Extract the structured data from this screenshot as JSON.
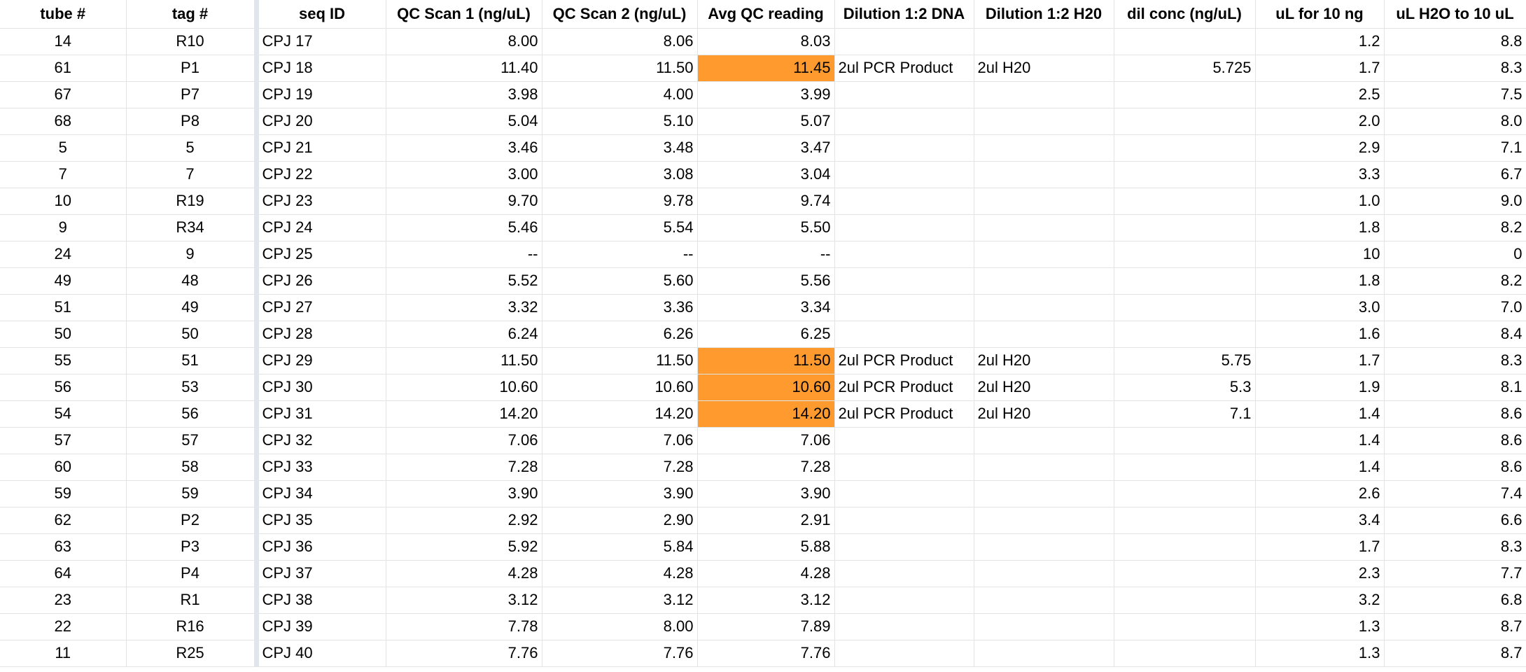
{
  "colors": {
    "highlight": "#ff9a2e",
    "gridline": "#e2e3e3",
    "freeze_divider": "#e1e5ee"
  },
  "headers": [
    "tube #",
    "tag #",
    "seq ID",
    "QC Scan 1 (ng/uL)",
    "QC Scan 2 (ng/uL)",
    "Avg QC reading",
    "Dilution 1:2 DNA",
    "Dilution 1:2 H20",
    "dil conc (ng/uL)",
    "uL for 10 ng",
    "uL H2O to 10 uL"
  ],
  "rows": [
    {
      "tube": "14",
      "tag": "R10",
      "seq": "CPJ 17",
      "qc1": "8.00",
      "qc2": "8.06",
      "avg": "8.03",
      "avg_highlight": false,
      "dna": "",
      "h2o": "",
      "dil": "",
      "ul10": "1.2",
      "ulh2o": "8.8"
    },
    {
      "tube": "61",
      "tag": "P1",
      "seq": "CPJ 18",
      "qc1": "11.40",
      "qc2": "11.50",
      "avg": "11.45",
      "avg_highlight": true,
      "dna": "2ul PCR Product",
      "h2o": "2ul H20",
      "dil": "5.725",
      "ul10": "1.7",
      "ulh2o": "8.3"
    },
    {
      "tube": "67",
      "tag": "P7",
      "seq": "CPJ 19",
      "qc1": "3.98",
      "qc2": "4.00",
      "avg": "3.99",
      "avg_highlight": false,
      "dna": "",
      "h2o": "",
      "dil": "",
      "ul10": "2.5",
      "ulh2o": "7.5"
    },
    {
      "tube": "68",
      "tag": "P8",
      "seq": "CPJ 20",
      "qc1": "5.04",
      "qc2": "5.10",
      "avg": "5.07",
      "avg_highlight": false,
      "dna": "",
      "h2o": "",
      "dil": "",
      "ul10": "2.0",
      "ulh2o": "8.0"
    },
    {
      "tube": "5",
      "tag": "5",
      "seq": "CPJ 21",
      "qc1": "3.46",
      "qc2": "3.48",
      "avg": "3.47",
      "avg_highlight": false,
      "dna": "",
      "h2o": "",
      "dil": "",
      "ul10": "2.9",
      "ulh2o": "7.1"
    },
    {
      "tube": "7",
      "tag": "7",
      "seq": "CPJ 22",
      "qc1": "3.00",
      "qc2": "3.08",
      "avg": "3.04",
      "avg_highlight": false,
      "dna": "",
      "h2o": "",
      "dil": "",
      "ul10": "3.3",
      "ulh2o": "6.7"
    },
    {
      "tube": "10",
      "tag": "R19",
      "seq": "CPJ 23",
      "qc1": "9.70",
      "qc2": "9.78",
      "avg": "9.74",
      "avg_highlight": false,
      "dna": "",
      "h2o": "",
      "dil": "",
      "ul10": "1.0",
      "ulh2o": "9.0"
    },
    {
      "tube": "9",
      "tag": "R34",
      "seq": "CPJ 24",
      "qc1": "5.46",
      "qc2": "5.54",
      "avg": "5.50",
      "avg_highlight": false,
      "dna": "",
      "h2o": "",
      "dil": "",
      "ul10": "1.8",
      "ulh2o": "8.2"
    },
    {
      "tube": "24",
      "tag": "9",
      "seq": "CPJ 25",
      "qc1": "--",
      "qc2": "--",
      "avg": "--",
      "avg_highlight": false,
      "dna": "",
      "h2o": "",
      "dil": "",
      "ul10": "10",
      "ulh2o": "0"
    },
    {
      "tube": "49",
      "tag": "48",
      "seq": "CPJ 26",
      "qc1": "5.52",
      "qc2": "5.60",
      "avg": "5.56",
      "avg_highlight": false,
      "dna": "",
      "h2o": "",
      "dil": "",
      "ul10": "1.8",
      "ulh2o": "8.2"
    },
    {
      "tube": "51",
      "tag": "49",
      "seq": "CPJ 27",
      "qc1": "3.32",
      "qc2": "3.36",
      "avg": "3.34",
      "avg_highlight": false,
      "dna": "",
      "h2o": "",
      "dil": "",
      "ul10": "3.0",
      "ulh2o": "7.0"
    },
    {
      "tube": "50",
      "tag": "50",
      "seq": "CPJ 28",
      "qc1": "6.24",
      "qc2": "6.26",
      "avg": "6.25",
      "avg_highlight": false,
      "dna": "",
      "h2o": "",
      "dil": "",
      "ul10": "1.6",
      "ulh2o": "8.4"
    },
    {
      "tube": "55",
      "tag": "51",
      "seq": "CPJ 29",
      "qc1": "11.50",
      "qc2": "11.50",
      "avg": "11.50",
      "avg_highlight": true,
      "dna": "2ul PCR Product",
      "h2o": "2ul H20",
      "dil": "5.75",
      "ul10": "1.7",
      "ulh2o": "8.3"
    },
    {
      "tube": "56",
      "tag": "53",
      "seq": "CPJ 30",
      "qc1": "10.60",
      "qc2": "10.60",
      "avg": "10.60",
      "avg_highlight": true,
      "dna": "2ul PCR Product",
      "h2o": "2ul H20",
      "dil": "5.3",
      "ul10": "1.9",
      "ulh2o": "8.1"
    },
    {
      "tube": "54",
      "tag": "56",
      "seq": "CPJ 31",
      "qc1": "14.20",
      "qc2": "14.20",
      "avg": "14.20",
      "avg_highlight": true,
      "dna": "2ul PCR Product",
      "h2o": "2ul H20",
      "dil": "7.1",
      "ul10": "1.4",
      "ulh2o": "8.6"
    },
    {
      "tube": "57",
      "tag": "57",
      "seq": "CPJ 32",
      "qc1": "7.06",
      "qc2": "7.06",
      "avg": "7.06",
      "avg_highlight": false,
      "dna": "",
      "h2o": "",
      "dil": "",
      "ul10": "1.4",
      "ulh2o": "8.6"
    },
    {
      "tube": "60",
      "tag": "58",
      "seq": "CPJ 33",
      "qc1": "7.28",
      "qc2": "7.28",
      "avg": "7.28",
      "avg_highlight": false,
      "dna": "",
      "h2o": "",
      "dil": "",
      "ul10": "1.4",
      "ulh2o": "8.6"
    },
    {
      "tube": "59",
      "tag": "59",
      "seq": "CPJ 34",
      "qc1": "3.90",
      "qc2": "3.90",
      "avg": "3.90",
      "avg_highlight": false,
      "dna": "",
      "h2o": "",
      "dil": "",
      "ul10": "2.6",
      "ulh2o": "7.4"
    },
    {
      "tube": "62",
      "tag": "P2",
      "seq": "CPJ 35",
      "qc1": "2.92",
      "qc2": "2.90",
      "avg": "2.91",
      "avg_highlight": false,
      "dna": "",
      "h2o": "",
      "dil": "",
      "ul10": "3.4",
      "ulh2o": "6.6"
    },
    {
      "tube": "63",
      "tag": "P3",
      "seq": "CPJ 36",
      "qc1": "5.92",
      "qc2": "5.84",
      "avg": "5.88",
      "avg_highlight": false,
      "dna": "",
      "h2o": "",
      "dil": "",
      "ul10": "1.7",
      "ulh2o": "8.3"
    },
    {
      "tube": "64",
      "tag": "P4",
      "seq": "CPJ 37",
      "qc1": "4.28",
      "qc2": "4.28",
      "avg": "4.28",
      "avg_highlight": false,
      "dna": "",
      "h2o": "",
      "dil": "",
      "ul10": "2.3",
      "ulh2o": "7.7"
    },
    {
      "tube": "23",
      "tag": "R1",
      "seq": "CPJ 38",
      "qc1": "3.12",
      "qc2": "3.12",
      "avg": "3.12",
      "avg_highlight": false,
      "dna": "",
      "h2o": "",
      "dil": "",
      "ul10": "3.2",
      "ulh2o": "6.8"
    },
    {
      "tube": "22",
      "tag": "R16",
      "seq": "CPJ 39",
      "qc1": "7.78",
      "qc2": "8.00",
      "avg": "7.89",
      "avg_highlight": false,
      "dna": "",
      "h2o": "",
      "dil": "",
      "ul10": "1.3",
      "ulh2o": "8.7"
    },
    {
      "tube": "11",
      "tag": "R25",
      "seq": "CPJ 40",
      "qc1": "7.76",
      "qc2": "7.76",
      "avg": "7.76",
      "avg_highlight": false,
      "dna": "",
      "h2o": "",
      "dil": "",
      "ul10": "1.3",
      "ulh2o": "8.7"
    }
  ]
}
